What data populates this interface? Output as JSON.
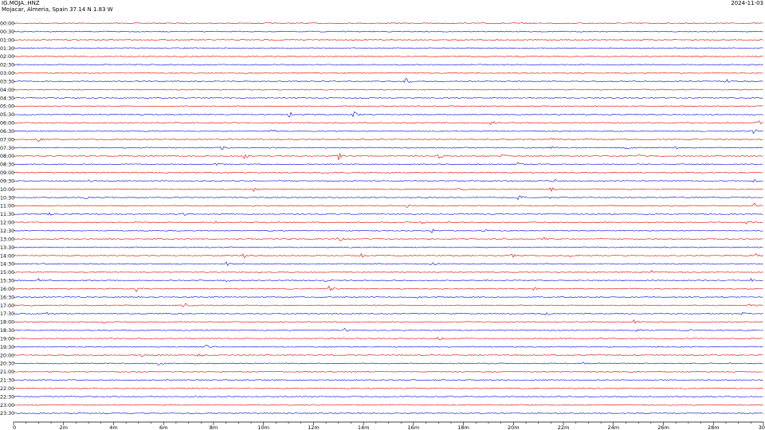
{
  "header": {
    "station": "IG.MOJA..HNZ",
    "location": "Mojacar, Almeria, Spain  37.14 N 1.83 W",
    "date": "2024-11-03"
  },
  "colors": {
    "odd_trace": "#e00000",
    "even_trace": "#0000dd",
    "axis": "#000000"
  },
  "chart_data": {
    "type": "line",
    "title": "IG.MOJA..HNZ",
    "subtitle": "Mojacar, Almeria, Spain  37.14 N 1.83 W",
    "xlabel": "",
    "ylabel": "",
    "x_ticks": [
      "0",
      "2m",
      "4m",
      "6m",
      "8m",
      "10m",
      "12m",
      "14m",
      "16m",
      "18m",
      "20m",
      "22m",
      "24m",
      "26m",
      "28m",
      "30"
    ],
    "xlim": [
      0,
      30
    ],
    "rows": [
      "00:00",
      "00:30",
      "01:00",
      "01:30",
      "02:00",
      "02:30",
      "03:00",
      "03:30",
      "04:00",
      "04:30",
      "05:00",
      "05:30",
      "06:00",
      "06:30",
      "07:00",
      "07:30",
      "08:00",
      "08:30",
      "09:00",
      "09:30",
      "10:00",
      "10:30",
      "11:00",
      "11:30",
      "12:00",
      "12:30",
      "13:00",
      "13:30",
      "14:00",
      "14:30",
      "15:00",
      "15:30",
      "16:00",
      "16:30",
      "17:00",
      "17:30",
      "18:00",
      "18:30",
      "19:00",
      "19:30",
      "20:00",
      "20:30",
      "21:00",
      "21:30",
      "22:00",
      "22:30",
      "23:00",
      "23:30"
    ],
    "events": [
      {
        "row": 7,
        "minute": 15.7,
        "amp": 5
      },
      {
        "row": 7,
        "minute": 28.5,
        "amp": 3
      },
      {
        "row": 11,
        "minute": 11.0,
        "amp": 5
      },
      {
        "row": 11,
        "minute": 13.6,
        "amp": 4
      },
      {
        "row": 12,
        "minute": 19.1,
        "amp": 3
      },
      {
        "row": 12,
        "minute": 29.8,
        "amp": 3
      },
      {
        "row": 13,
        "minute": 10.3,
        "amp": 3
      },
      {
        "row": 13,
        "minute": 29.6,
        "amp": 3
      },
      {
        "row": 14,
        "minute": 1.0,
        "amp": 2
      },
      {
        "row": 14,
        "minute": 21.5,
        "amp": 2
      },
      {
        "row": 15,
        "minute": 8.3,
        "amp": 3
      },
      {
        "row": 15,
        "minute": 21.5,
        "amp": 3
      },
      {
        "row": 15,
        "minute": 24.5,
        "amp": 2
      },
      {
        "row": 15,
        "minute": 26.5,
        "amp": 2
      },
      {
        "row": 16,
        "minute": 9.2,
        "amp": 4
      },
      {
        "row": 16,
        "minute": 13.0,
        "amp": 5
      },
      {
        "row": 16,
        "minute": 17.0,
        "amp": 4
      },
      {
        "row": 16,
        "minute": 19.5,
        "amp": 3
      },
      {
        "row": 16,
        "minute": 25.0,
        "amp": 2
      },
      {
        "row": 17,
        "minute": 20.2,
        "amp": 3
      },
      {
        "row": 17,
        "minute": 8.0,
        "amp": 2
      },
      {
        "row": 19,
        "minute": 3.0,
        "amp": 2
      },
      {
        "row": 19,
        "minute": 21.6,
        "amp": 2
      },
      {
        "row": 19,
        "minute": 29.6,
        "amp": 2
      },
      {
        "row": 20,
        "minute": 9.6,
        "amp": 3
      },
      {
        "row": 20,
        "minute": 17.8,
        "amp": 3
      },
      {
        "row": 20,
        "minute": 21.5,
        "amp": 3
      },
      {
        "row": 21,
        "minute": 2.8,
        "amp": 3
      },
      {
        "row": 21,
        "minute": 20.2,
        "amp": 4
      },
      {
        "row": 21,
        "minute": 21.4,
        "amp": 2
      },
      {
        "row": 22,
        "minute": 15.7,
        "amp": 3
      },
      {
        "row": 22,
        "minute": 29.6,
        "amp": 4
      },
      {
        "row": 23,
        "minute": 1.4,
        "amp": 3
      },
      {
        "row": 23,
        "minute": 6.8,
        "amp": 2
      },
      {
        "row": 24,
        "minute": 8.0,
        "amp": 2
      },
      {
        "row": 24,
        "minute": 16.3,
        "amp": 2
      },
      {
        "row": 24,
        "minute": 29.3,
        "amp": 3
      },
      {
        "row": 25,
        "minute": 16.7,
        "amp": 3
      },
      {
        "row": 25,
        "minute": 18.8,
        "amp": 2
      },
      {
        "row": 26,
        "minute": 5.6,
        "amp": 2
      },
      {
        "row": 26,
        "minute": 13.0,
        "amp": 5
      },
      {
        "row": 26,
        "minute": 21.2,
        "amp": 2
      },
      {
        "row": 28,
        "minute": 9.2,
        "amp": 3
      },
      {
        "row": 28,
        "minute": 13.9,
        "amp": 3
      },
      {
        "row": 28,
        "minute": 19.9,
        "amp": 4
      },
      {
        "row": 28,
        "minute": 22.3,
        "amp": 4
      },
      {
        "row": 28,
        "minute": 29.7,
        "amp": 4
      },
      {
        "row": 29,
        "minute": 8.5,
        "amp": 3
      },
      {
        "row": 29,
        "minute": 16.7,
        "amp": 2
      },
      {
        "row": 30,
        "minute": 25.5,
        "amp": 3
      },
      {
        "row": 31,
        "minute": 1.0,
        "amp": 2
      },
      {
        "row": 31,
        "minute": 8.5,
        "amp": 2
      },
      {
        "row": 31,
        "minute": 12.4,
        "amp": 2
      },
      {
        "row": 31,
        "minute": 29.5,
        "amp": 3
      },
      {
        "row": 32,
        "minute": 4.9,
        "amp": 4
      },
      {
        "row": 32,
        "minute": 12.6,
        "amp": 4
      },
      {
        "row": 32,
        "minute": 20.8,
        "amp": 3
      },
      {
        "row": 33,
        "minute": 16.1,
        "amp": 3
      },
      {
        "row": 34,
        "minute": 6.8,
        "amp": 5
      },
      {
        "row": 34,
        "minute": 3.5,
        "amp": 2
      },
      {
        "row": 34,
        "minute": 29.4,
        "amp": 2
      },
      {
        "row": 35,
        "minute": 1.3,
        "amp": 2
      },
      {
        "row": 35,
        "minute": 21.3,
        "amp": 3
      },
      {
        "row": 35,
        "minute": 29.1,
        "amp": 3
      },
      {
        "row": 36,
        "minute": 3.5,
        "amp": 3
      },
      {
        "row": 36,
        "minute": 24.8,
        "amp": 3
      },
      {
        "row": 37,
        "minute": 13.2,
        "amp": 3
      },
      {
        "row": 37,
        "minute": 24.9,
        "amp": 4
      },
      {
        "row": 37,
        "minute": 26.9,
        "amp": 3
      },
      {
        "row": 38,
        "minute": 17.0,
        "amp": 3
      },
      {
        "row": 39,
        "minute": 7.7,
        "amp": 3
      },
      {
        "row": 40,
        "minute": 5.1,
        "amp": 2
      },
      {
        "row": 40,
        "minute": 7.4,
        "amp": 3
      },
      {
        "row": 40,
        "minute": 23.4,
        "amp": 2
      },
      {
        "row": 41,
        "minute": 5.8,
        "amp": 2
      },
      {
        "row": 41,
        "minute": 22.8,
        "amp": 2
      },
      {
        "row": 42,
        "minute": 1.4,
        "amp": 2
      }
    ]
  }
}
